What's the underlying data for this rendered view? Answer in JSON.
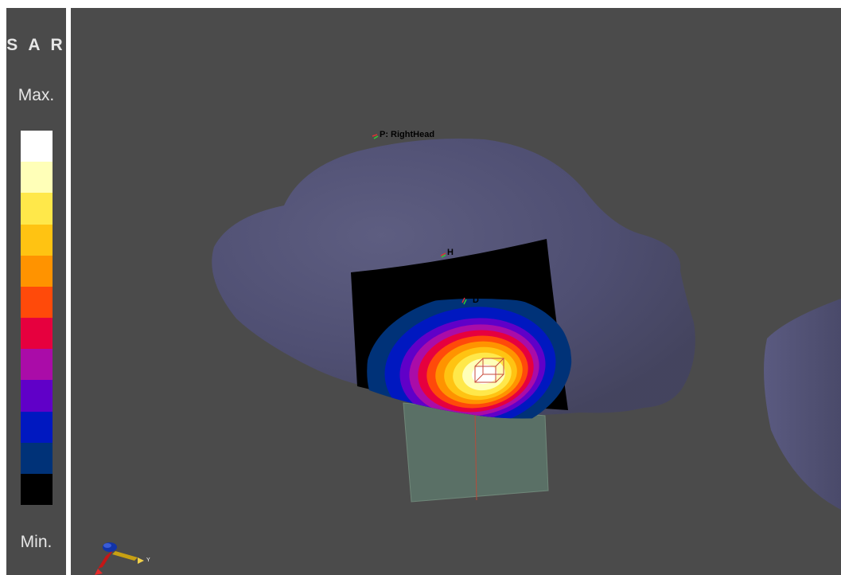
{
  "legend": {
    "title": "S A R",
    "max_label": "Max.",
    "min_label": "Min.",
    "colors": [
      "#ffffff",
      "#ffffb8",
      "#ffe84a",
      "#ffc312",
      "#ff9300",
      "#ff4a0a",
      "#e6003e",
      "#aa0ca8",
      "#6000c8",
      "#0018c0",
      "#003278",
      "#000000"
    ]
  },
  "viewport": {
    "phantom_label": "P: RightHead",
    "marker_h_label": "H",
    "marker_d_label": "D",
    "axis_y_label": "Y",
    "background": "#4b4b4b",
    "phantom_color": "#4c4c6e"
  }
}
